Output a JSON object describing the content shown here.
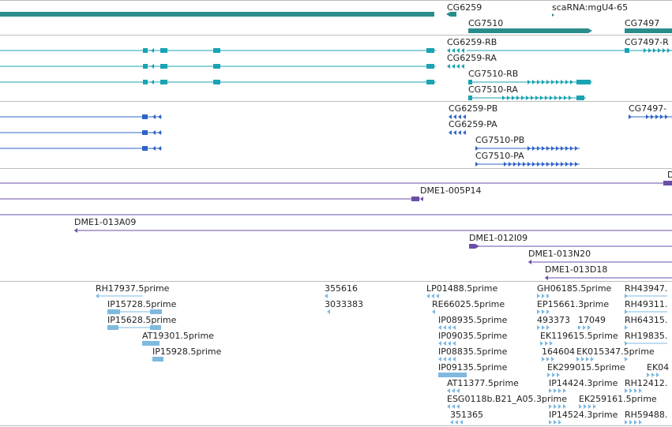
{
  "colors": {
    "gene": "#2b8c8c",
    "mrna": "#1aa3b3",
    "cds": "#2f63c8",
    "clone": "#6a4fa8",
    "est": "#7fb9e0",
    "separator": "#bdbdbd"
  },
  "tracks": {
    "genes": {
      "features": [
        {
          "label": "CG6259"
        },
        {
          "label": "scaRNA:mgU4-65"
        },
        {
          "label": "CG7510"
        },
        {
          "label": "CG7497"
        }
      ]
    },
    "transcripts": {
      "features": [
        {
          "label": "CG6259-RB"
        },
        {
          "label": "CG7497-R"
        },
        {
          "label": "CG6259-RA"
        },
        {
          "label": "CG7510-RB"
        },
        {
          "label": "CG7510-RA"
        }
      ]
    },
    "cds": {
      "features": [
        {
          "label": "CG6259-PB"
        },
        {
          "label": "CG7497-"
        },
        {
          "label": "CG6259-PA"
        },
        {
          "label": "CG7510-PB"
        },
        {
          "label": "CG7510-PA"
        }
      ]
    },
    "clones": {
      "features": [
        {
          "label": "D"
        },
        {
          "label": "DME1-005P14"
        },
        {
          "label": "DME1-013A09"
        },
        {
          "label": "DME1-012I09"
        },
        {
          "label": "DME1-013N20"
        },
        {
          "label": "DME1-013D18"
        }
      ]
    },
    "ests": {
      "features": [
        {
          "label": "RH17937.5prime"
        },
        {
          "label": "355616"
        },
        {
          "label": "LP01488.5prime"
        },
        {
          "label": "GH06185.5prime"
        },
        {
          "label": "RH43947."
        },
        {
          "label": "IP15728.5prime"
        },
        {
          "label": "3033383"
        },
        {
          "label": "RE66025.5prime"
        },
        {
          "label": "EP15661.3prime"
        },
        {
          "label": "RH49311."
        },
        {
          "label": "IP15628.5prime"
        },
        {
          "label": "IP08935.5prime"
        },
        {
          "label": "493373"
        },
        {
          "label": "17049"
        },
        {
          "label": "RH64315."
        },
        {
          "label": "AT19301.5prime"
        },
        {
          "label": "IP09035.5prime"
        },
        {
          "label": "EK119615.5prime"
        },
        {
          "label": "RH19835."
        },
        {
          "label": "IP15928.5prime"
        },
        {
          "label": "IP08835.5prime"
        },
        {
          "label": "164604"
        },
        {
          "label": "EK015347.5prime"
        },
        {
          "label": "IP09135.5prime"
        },
        {
          "label": "EK299015.5prime"
        },
        {
          "label": "EK04"
        },
        {
          "label": "AT11377.5prime"
        },
        {
          "label": "IP14424.3prime"
        },
        {
          "label": "RH12412."
        },
        {
          "label": "ESG0118b.B21_A05.3prime"
        },
        {
          "label": "EK259161.5prime"
        },
        {
          "label": "351365"
        },
        {
          "label": "IP14524.3prime"
        },
        {
          "label": "RH59488."
        }
      ]
    }
  }
}
